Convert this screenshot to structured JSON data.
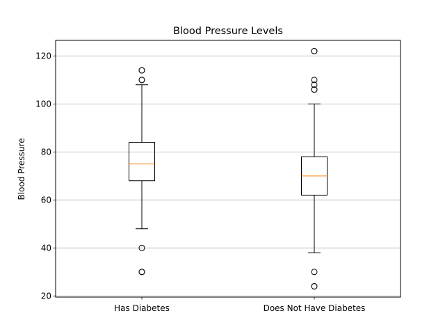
{
  "chart_data": {
    "type": "box",
    "title": "Blood Pressure Levels",
    "xlabel": "",
    "ylabel": "Blood Pressure",
    "ylim": [
      19.5,
      126.5
    ],
    "yticks": [
      20,
      40,
      60,
      80,
      100,
      120
    ],
    "grid": "y-axis",
    "categories": [
      "Has Diabetes",
      "Does Not Have Diabetes"
    ],
    "boxes": [
      {
        "category": "Has Diabetes",
        "q1": 68,
        "median": 75,
        "q3": 84,
        "whisker_low": 48,
        "whisker_high": 108,
        "outliers": [
          30,
          30,
          40,
          110,
          110,
          114,
          114
        ]
      },
      {
        "category": "Does Not Have Diabetes",
        "q1": 62,
        "median": 70,
        "q3": 78,
        "whisker_low": 38,
        "whisker_high": 100,
        "outliers": [
          24,
          24,
          30,
          106,
          106,
          108,
          110,
          122,
          122
        ]
      }
    ],
    "colors": {
      "box": "#000000",
      "median": "#ff7f0e",
      "grid": "#b0b0b0"
    }
  }
}
